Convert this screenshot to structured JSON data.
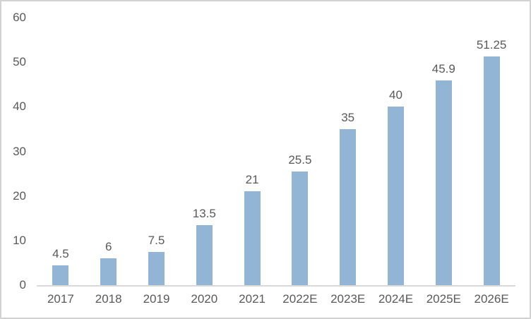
{
  "chart_data": {
    "type": "bar",
    "title": "",
    "xlabel": "",
    "ylabel": "",
    "categories": [
      "2017",
      "2018",
      "2019",
      "2020",
      "2021",
      "2022E",
      "2023E",
      "2024E",
      "2025E",
      "2026E"
    ],
    "values": [
      4.5,
      6,
      7.5,
      13.5,
      21,
      25.5,
      35,
      40,
      45.9,
      51.25
    ],
    "data_labels": [
      "4.5",
      "6",
      "7.5",
      "13.5",
      "21",
      "25.5",
      "35",
      "40",
      "45.9",
      "51.25"
    ],
    "ylim": [
      0,
      60
    ],
    "yticks": [
      0,
      10,
      20,
      30,
      40,
      50,
      60
    ],
    "grid": false,
    "legend_position": "none",
    "colors": {
      "bar_fill": "#93b5d5",
      "axis_line": "#d9d9d9",
      "text": "#595959",
      "frame_border": "#d2d2d2",
      "background": "#ffffff"
    }
  }
}
